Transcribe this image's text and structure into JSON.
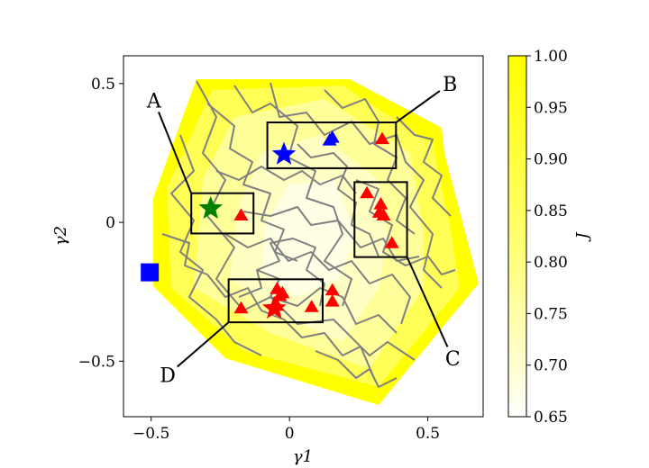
{
  "chart_data": {
    "type": "scatter",
    "xlabel": "γ1",
    "ylabel": "γ2",
    "xlim": [
      -0.6,
      0.7
    ],
    "ylim": [
      -0.7,
      0.6
    ],
    "xticks": [
      "−0.5",
      "0",
      "0.5"
    ],
    "xtick_values": [
      -0.5,
      0,
      0.5
    ],
    "yticks": [
      "0.5",
      "0",
      "−0.5"
    ],
    "ytick_values": [
      0.5,
      0,
      -0.5
    ],
    "background": "contour map of J (yellow-to-white colormap) with grey contour lines",
    "colorbar": {
      "label": "J",
      "range": [
        0.65,
        1.0
      ],
      "ticks": [
        "1.00",
        "0.95",
        "0.90",
        "0.85",
        "0.80",
        "0.75",
        "0.70",
        "0.65"
      ],
      "tick_values": [
        1.0,
        0.95,
        0.9,
        0.85,
        0.8,
        0.75,
        0.7,
        0.65
      ],
      "colors": [
        "#ffffff",
        "#ffff00"
      ]
    },
    "boxes": [
      {
        "label": "A",
        "x0": -0.355,
        "x1": -0.13,
        "y0": -0.04,
        "y1": 0.105,
        "label_x": -0.49,
        "label_y": 0.44,
        "anchor_x": -0.355,
        "anchor_y": 0.105
      },
      {
        "label": "B",
        "x0": -0.08,
        "x1": 0.385,
        "y0": 0.195,
        "y1": 0.36,
        "label_x": 0.58,
        "label_y": 0.5,
        "anchor_x": 0.385,
        "anchor_y": 0.36
      },
      {
        "label": "C",
        "x0": 0.235,
        "x1": 0.425,
        "y0": -0.125,
        "y1": 0.145,
        "label_x": 0.59,
        "label_y": -0.49,
        "anchor_x": 0.425,
        "anchor_y": -0.125
      },
      {
        "label": "D",
        "x0": -0.22,
        "x1": 0.12,
        "y0": -0.36,
        "y1": -0.205,
        "label_x": -0.44,
        "label_y": -0.55,
        "anchor_x": -0.22,
        "anchor_y": -0.36
      }
    ],
    "series": [
      {
        "marker": "triangle",
        "color": "#ff0000",
        "points": [
          [
            -0.175,
            0.025
          ],
          [
            -0.175,
            -0.31
          ],
          [
            -0.045,
            -0.24
          ],
          [
            -0.035,
            -0.265
          ],
          [
            -0.025,
            -0.255
          ],
          [
            -0.045,
            -0.3
          ],
          [
            0.08,
            -0.305
          ],
          [
            0.155,
            -0.245
          ],
          [
            0.155,
            -0.285
          ],
          [
            0.335,
            0.3
          ],
          [
            0.28,
            0.105
          ],
          [
            0.33,
            0.065
          ],
          [
            0.325,
            0.035
          ],
          [
            0.34,
            0.025
          ],
          [
            0.37,
            -0.075
          ]
        ]
      },
      {
        "marker": "star",
        "color": "#ff0000",
        "points": [
          [
            -0.055,
            -0.31
          ]
        ]
      },
      {
        "marker": "triangle",
        "color": "#0000ff",
        "points": [
          [
            0.145,
            0.295
          ],
          [
            0.155,
            0.305
          ]
        ]
      },
      {
        "marker": "star",
        "color": "#0000ff",
        "points": [
          [
            -0.02,
            0.245
          ]
        ]
      },
      {
        "marker": "star",
        "color": "#008000",
        "points": [
          [
            -0.285,
            0.05
          ]
        ]
      },
      {
        "marker": "square",
        "color": "#0000ff",
        "points": [
          [
            -0.505,
            -0.18
          ]
        ]
      }
    ]
  }
}
